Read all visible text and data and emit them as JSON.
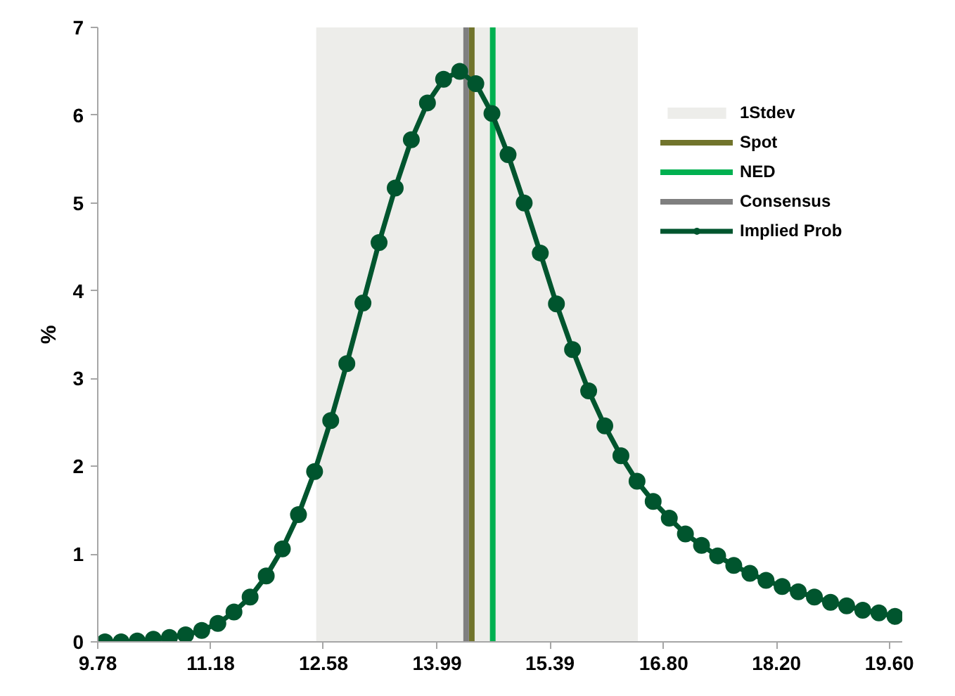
{
  "chart_data": {
    "type": "line",
    "ylabel": "%",
    "x": [
      9.87,
      10.07,
      10.27,
      10.47,
      10.67,
      10.87,
      11.07,
      11.27,
      11.47,
      11.67,
      11.87,
      12.07,
      12.27,
      12.47,
      12.67,
      12.87,
      13.07,
      13.27,
      13.47,
      13.67,
      13.87,
      14.07,
      14.27,
      14.47,
      14.67,
      14.87,
      15.07,
      15.27,
      15.47,
      15.67,
      15.87,
      16.07,
      16.27,
      16.47,
      16.67,
      16.87,
      17.07,
      17.27,
      17.47,
      17.67,
      17.87,
      18.07,
      18.27,
      18.47,
      18.67,
      18.87,
      19.07,
      19.27,
      19.47,
      19.67
    ],
    "series": [
      {
        "name": "1Stdev",
        "type": "area",
        "color": "#ededea",
        "x": [
          12.49,
          16.48
        ],
        "values": [
          7,
          7
        ]
      },
      {
        "name": "Spot",
        "color": "#71742c",
        "x": [
          14.42,
          14.42
        ],
        "values": [
          0,
          7
        ],
        "marker": "none"
      },
      {
        "name": "NED",
        "color": "#00b050",
        "x": [
          14.68,
          14.68
        ],
        "values": [
          0,
          7
        ],
        "marker": "none"
      },
      {
        "name": "Consensus",
        "color": "#7f7f7f",
        "x": [
          14.35,
          14.35
        ],
        "values": [
          0,
          7
        ],
        "marker": "none"
      },
      {
        "name": "Implied Prob",
        "color": "#00552e",
        "marker": "circle",
        "values": [
          0,
          0,
          0.01,
          0.03,
          0.05,
          0.08,
          0.13,
          0.21,
          0.34,
          0.51,
          0.75,
          1.06,
          1.45,
          1.94,
          2.52,
          3.17,
          3.86,
          4.55,
          5.17,
          5.72,
          6.14,
          6.41,
          6.5,
          6.36,
          6.02,
          5.55,
          5,
          4.43,
          3.85,
          3.33,
          2.86,
          2.46,
          2.12,
          1.83,
          1.6,
          1.41,
          1.23,
          1.1,
          0.98,
          0.87,
          0.78,
          0.7,
          0.63,
          0.57,
          0.51,
          0.45,
          0.41,
          0.36,
          0.33,
          0.29
        ]
      }
    ],
    "xlim": [
      9.78,
      19.76
    ],
    "ylim": [
      0,
      7
    ],
    "xticks": [
      {
        "value": 9.78,
        "label": "9.78"
      },
      11.18,
      12.58,
      13.99,
      15.39,
      {
        "value": 16.8,
        "label": "16.80"
      },
      {
        "value": 18.2,
        "label": "18.20"
      },
      {
        "value": 19.6,
        "label": "19.60"
      }
    ],
    "yticks": [
      0,
      1,
      2,
      3,
      4,
      5,
      6,
      7
    ],
    "grid": false,
    "legend": "top right",
    "line_style": "solid"
  }
}
